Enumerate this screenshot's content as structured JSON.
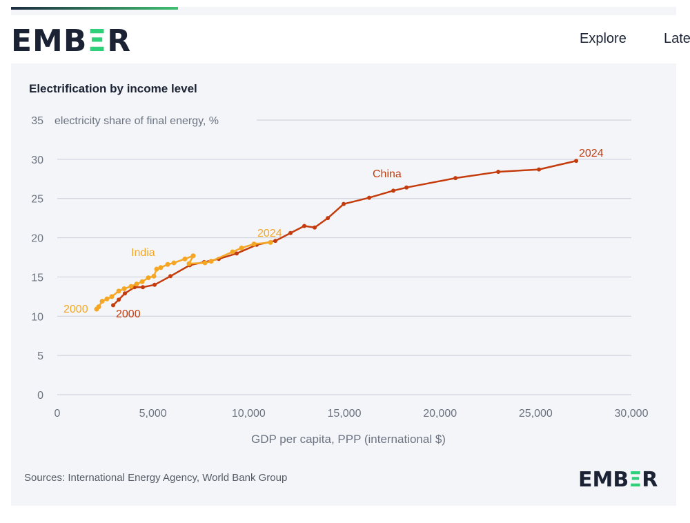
{
  "header": {
    "logo": "EMBER",
    "nav": [
      "Explore",
      "Late"
    ]
  },
  "colors": {
    "china": "#c43c0c",
    "india": "#f5a623",
    "grid": "#c9ced8"
  },
  "chart_data": {
    "type": "line",
    "title": "Electrification by income level",
    "ylabel": "electricity share of final energy, %",
    "xlabel": "GDP per capita, PPP (international $)",
    "xlim": [
      0,
      30000
    ],
    "ylim": [
      0,
      35
    ],
    "xticks": [
      "0",
      "5,000",
      "10,000",
      "15,000",
      "20,000",
      "25,000",
      "30,000"
    ],
    "yticks": [
      "0",
      "5",
      "10",
      "15",
      "20",
      "25",
      "30",
      "35"
    ],
    "series": [
      {
        "name": "China",
        "start_label": "2000",
        "end_label": "2024",
        "x": [
          2921,
          3210,
          3534,
          4039,
          4472,
          5085,
          5914,
          6924,
          7681,
          8439,
          9376,
          10422,
          11396,
          12189,
          12910,
          13451,
          14137,
          14966,
          16300,
          17562,
          18247,
          20808,
          23044,
          25171,
          27118
        ],
        "y": [
          11.4,
          12.1,
          12.9,
          13.7,
          13.7,
          14.0,
          15.1,
          16.5,
          16.9,
          17.3,
          18.0,
          19.1,
          19.6,
          20.6,
          21.5,
          21.3,
          22.5,
          24.3,
          25.1,
          26.0,
          26.4,
          27.6,
          28.4,
          28.7,
          29.8
        ]
      },
      {
        "name": "India",
        "start_label": "2000",
        "end_label": "2024",
        "x": [
          2055,
          2164,
          2344,
          2596,
          2849,
          3210,
          3498,
          3859,
          4147,
          4436,
          4760,
          5049,
          5193,
          5409,
          5770,
          6095,
          6672,
          7104,
          6888,
          7717,
          8042,
          9160,
          9629,
          10278,
          11144
        ],
        "y": [
          10.9,
          11.2,
          11.9,
          12.2,
          12.5,
          13.2,
          13.5,
          13.8,
          14.1,
          14.4,
          14.9,
          15.1,
          16.0,
          16.2,
          16.6,
          16.8,
          17.3,
          17.7,
          16.7,
          16.8,
          17.0,
          18.2,
          18.7,
          19.2,
          19.4
        ]
      }
    ]
  },
  "sources": "Sources: International Energy Agency, World Bank Group"
}
